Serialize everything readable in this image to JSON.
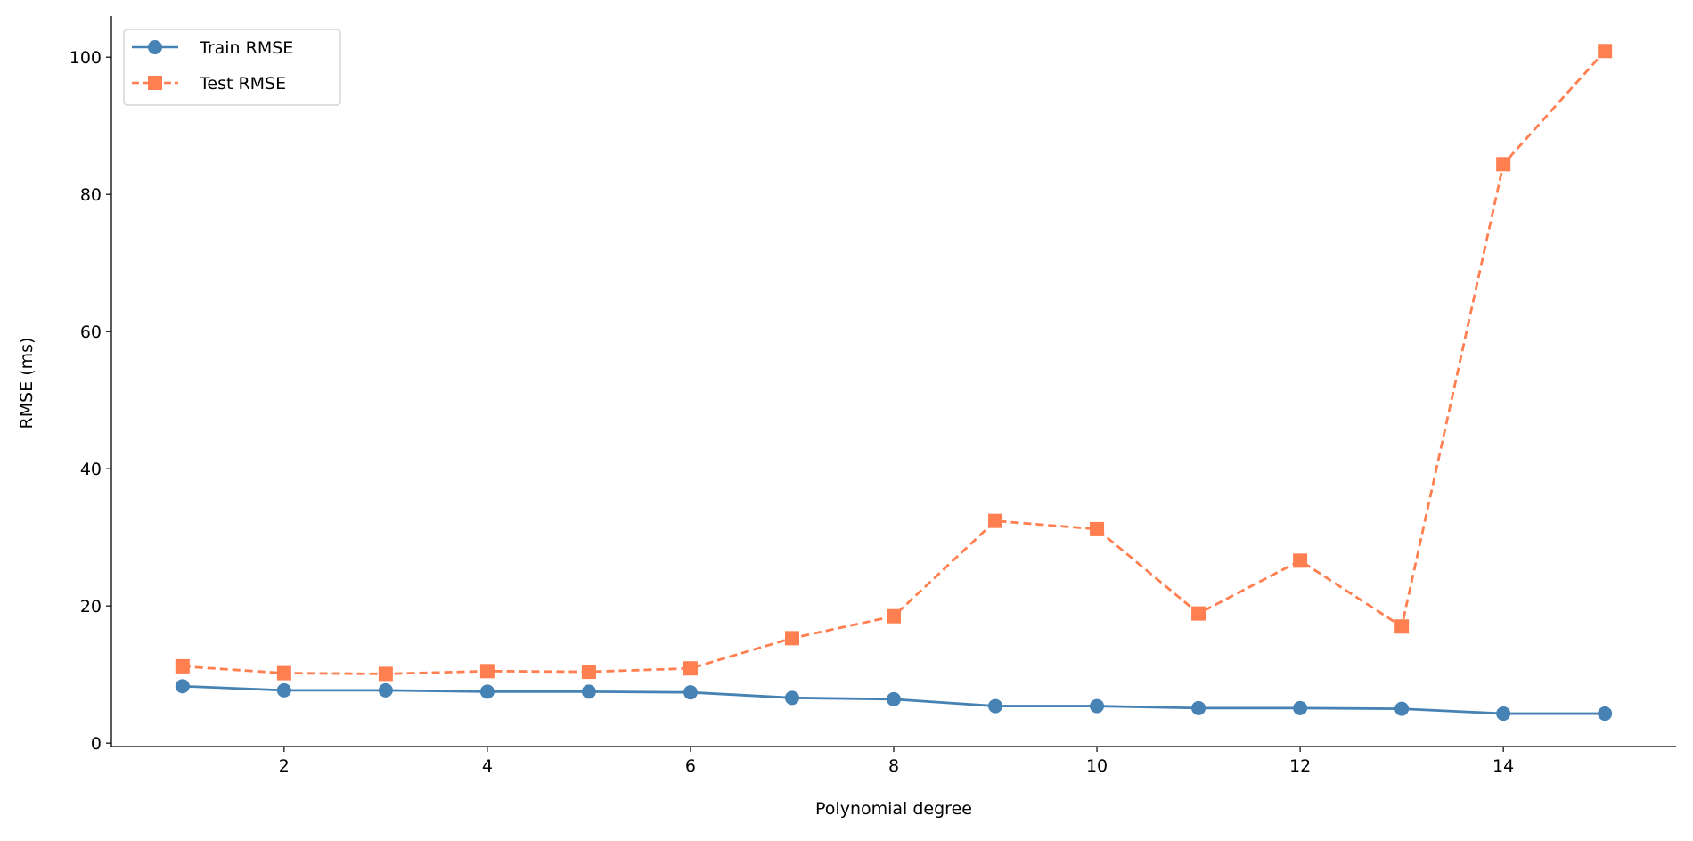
{
  "chart_data": {
    "type": "line",
    "title": "",
    "xlabel": "Polynomial degree",
    "ylabel": "RMSE (ms)",
    "xlim": [
      0.3,
      15.7
    ],
    "ylim": [
      -0.5,
      106
    ],
    "xticks": [
      2,
      4,
      6,
      8,
      10,
      12,
      14
    ],
    "yticks": [
      0,
      20,
      40,
      60,
      80,
      100
    ],
    "grid": false,
    "legend_position": "top-left",
    "x": [
      1,
      2,
      3,
      4,
      5,
      6,
      7,
      8,
      9,
      10,
      11,
      12,
      13,
      14,
      15
    ],
    "series": [
      {
        "name": "Train RMSE",
        "color": "#4682B4",
        "marker": "circle",
        "linestyle": "solid",
        "values": [
          8.3,
          7.7,
          7.7,
          7.5,
          7.5,
          7.4,
          6.6,
          6.4,
          5.4,
          5.4,
          5.1,
          5.1,
          5.0,
          4.3,
          4.3
        ]
      },
      {
        "name": "Test RMSE",
        "color": "#FF7F50",
        "marker": "square",
        "linestyle": "dashed",
        "values": [
          11.2,
          10.2,
          10.1,
          10.5,
          10.4,
          10.9,
          15.3,
          18.5,
          32.4,
          31.2,
          18.9,
          26.6,
          17.0,
          84.4,
          100.9
        ]
      }
    ]
  }
}
